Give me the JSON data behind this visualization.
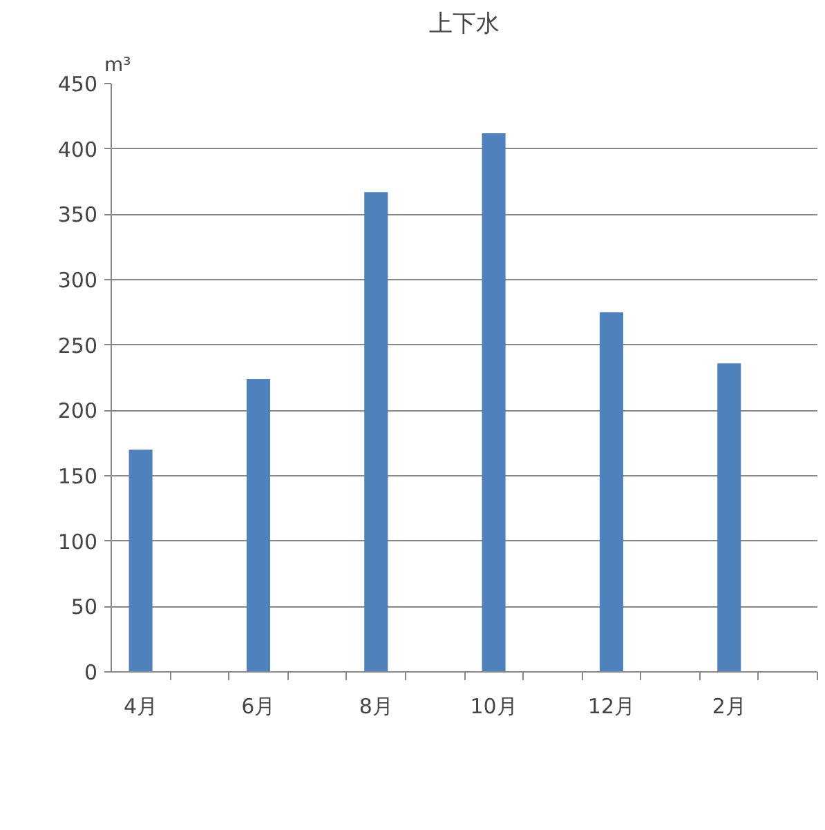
{
  "chart_data": {
    "type": "bar",
    "title": "上下水",
    "ylabel": "m³",
    "categories": [
      "4月",
      null,
      "6月",
      null,
      "8月",
      null,
      "10月",
      null,
      "12月",
      null,
      "2月",
      null
    ],
    "values": [
      170,
      null,
      224,
      null,
      367,
      null,
      412,
      null,
      275,
      null,
      236,
      null
    ],
    "color": "#4f81bd",
    "ylim": [
      0,
      450
    ],
    "yticks": [
      0,
      50,
      100,
      150,
      200,
      250,
      300,
      350,
      400,
      450
    ],
    "grid": "y"
  }
}
